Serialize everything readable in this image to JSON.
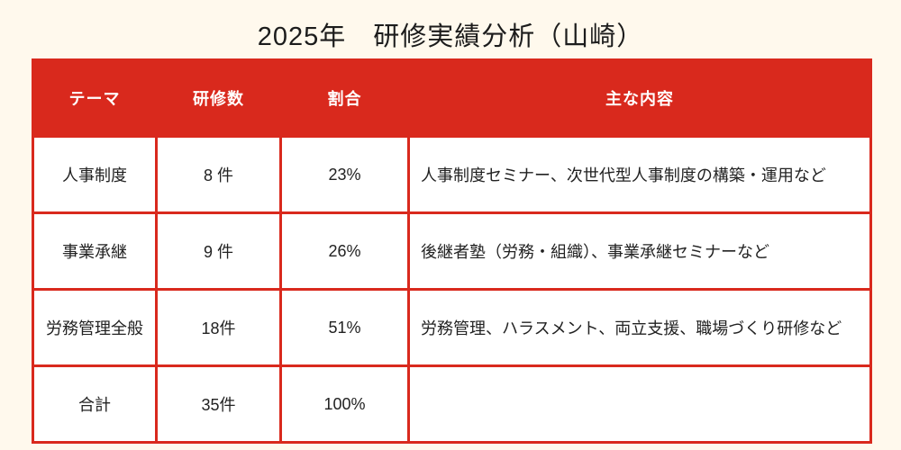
{
  "page": {
    "title": "2025年　研修実績分析（山崎）",
    "background_color": "#FFF9ED"
  },
  "colors": {
    "accent_red": "#D9291D",
    "header_text": "#FFFFFF",
    "body_text": "#222222",
    "cell_background": "#FFFFFF"
  },
  "table": {
    "columns": {
      "theme": "テーマ",
      "count": "研修数",
      "share": "割合",
      "content": "主な内容"
    },
    "rows": [
      {
        "theme": "人事制度",
        "count": "8 件",
        "share": "23%",
        "content": "人事制度セミナー、次世代型人事制度の構築・運用など"
      },
      {
        "theme": "事業承継",
        "count": "9 件",
        "share": "26%",
        "content": "後継者塾（労務・組織）、事業承継セミナーなど"
      },
      {
        "theme": "労務管理全般",
        "count": "18件",
        "share": "51%",
        "content": "労務管理、ハラスメント、両立支援、職場づくり研修など"
      },
      {
        "theme": "合計",
        "count": "35件",
        "share": "100%",
        "content": ""
      }
    ]
  },
  "chart_data": {
    "type": "table",
    "title": "2025年　研修実績分析（山崎）",
    "columns": [
      "テーマ",
      "研修数",
      "割合",
      "主な内容"
    ],
    "rows": [
      [
        "人事制度",
        "8 件",
        "23%",
        "人事制度セミナー、次世代型人事制度の構築・運用など"
      ],
      [
        "事業承継",
        "9 件",
        "26%",
        "後継者塾（労務・組織）、事業承継セミナーなど"
      ],
      [
        "労務管理全般",
        "18件",
        "51%",
        "労務管理、ハラスメント、両立支援、職場づくり研修など"
      ],
      [
        "合計",
        "35件",
        "100%",
        ""
      ]
    ],
    "numeric": {
      "categories": [
        "人事制度",
        "事業承継",
        "労務管理全般"
      ],
      "counts": [
        8,
        9,
        18
      ],
      "shares_percent": [
        23,
        26,
        51
      ],
      "total_count": 35,
      "total_share_percent": 100
    }
  }
}
